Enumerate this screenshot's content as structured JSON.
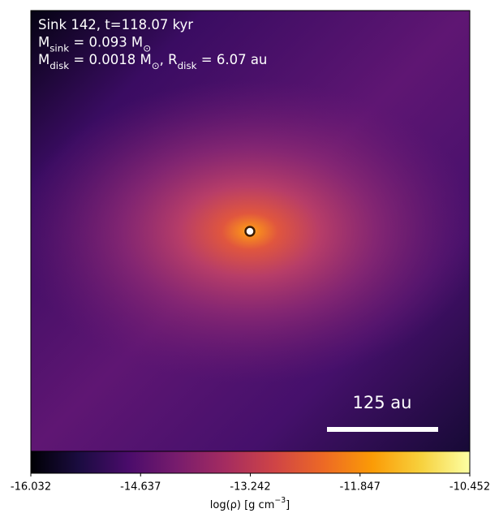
{
  "chart_data": {
    "type": "heatmap",
    "annotation_lines": [
      [
        "Sink 142, t=118.07 kyr"
      ],
      [
        "M",
        "sink",
        " = 0.093 M",
        "⊙"
      ],
      [
        "M",
        "disk",
        " = 0.0018 M",
        "⊙",
        ", R",
        "disk",
        " = 6.07 au"
      ]
    ],
    "scale_bar_label": "125 au",
    "colormap": "inferno",
    "colorbar": {
      "label": [
        "log(ρ) [g cm",
        "−3",
        "]"
      ],
      "lim": [
        -16.032,
        -10.452
      ],
      "ticks": [
        -16.032,
        -14.637,
        -13.242,
        -11.847,
        -10.452
      ]
    }
  }
}
